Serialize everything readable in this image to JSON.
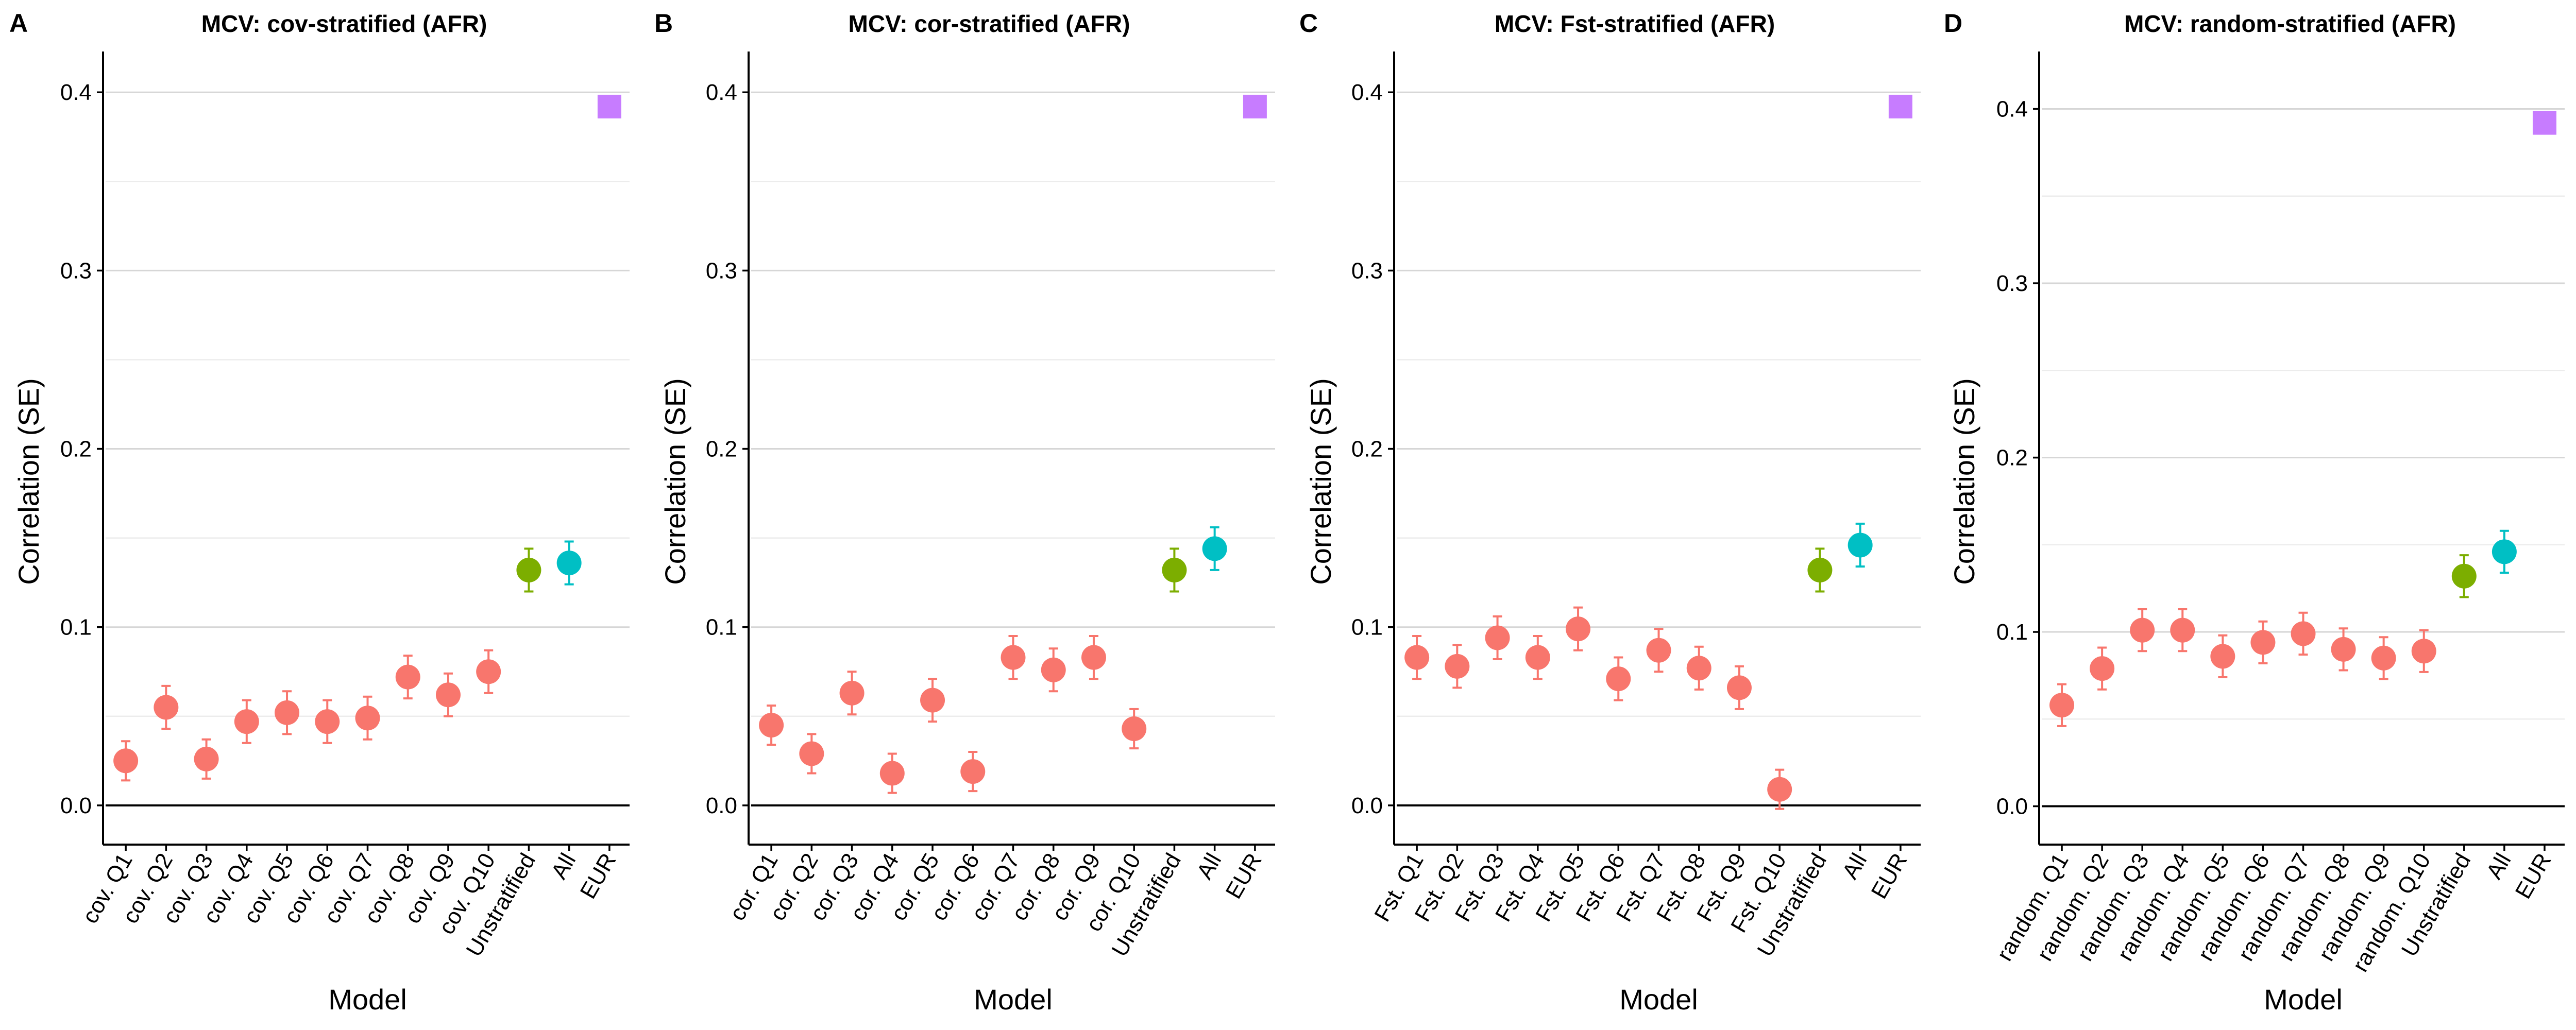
{
  "colors": {
    "stratified": "#F8766D",
    "unstratified": "#7CAE00",
    "all": "#00BFC4",
    "eur": "#C77CFF"
  },
  "chart_data": [
    {
      "type": "scatter",
      "panel": "A",
      "title": "MCV: cov-stratified (AFR)",
      "xlabel": "Model",
      "ylabel": "Correlation (SE)",
      "ylim": [
        -0.022,
        0.42
      ],
      "yticks": [
        0.0,
        0.1,
        0.2,
        0.3,
        0.4
      ],
      "yticklabels": [
        "0.0",
        "0.1",
        "0.2",
        "0.3",
        "0.4"
      ],
      "categories": [
        "cov. Q1",
        "cov. Q2",
        "cov. Q3",
        "cov. Q4",
        "cov. Q5",
        "cov. Q6",
        "cov. Q7",
        "cov. Q8",
        "cov. Q9",
        "cov. Q10",
        "Unstratified",
        "All",
        "EUR"
      ],
      "values": [
        0.025,
        0.055,
        0.026,
        0.047,
        0.052,
        0.047,
        0.049,
        0.072,
        0.062,
        0.075,
        0.132,
        0.136,
        0.392
      ],
      "se": [
        0.011,
        0.012,
        0.011,
        0.012,
        0.012,
        0.012,
        0.012,
        0.012,
        0.012,
        0.012,
        0.012,
        0.012,
        0
      ],
      "groups": [
        "stratified",
        "stratified",
        "stratified",
        "stratified",
        "stratified",
        "stratified",
        "stratified",
        "stratified",
        "stratified",
        "stratified",
        "unstratified",
        "all",
        "eur"
      ]
    },
    {
      "type": "scatter",
      "panel": "B",
      "title": "MCV: cor-stratified (AFR)",
      "xlabel": "Model",
      "ylabel": "Correlation (SE)",
      "ylim": [
        -0.022,
        0.42
      ],
      "yticks": [
        0.0,
        0.1,
        0.2,
        0.3,
        0.4
      ],
      "yticklabels": [
        "0.0",
        "0.1",
        "0.2",
        "0.3",
        "0.4"
      ],
      "categories": [
        "cor. Q1",
        "cor. Q2",
        "cor. Q3",
        "cor. Q4",
        "cor. Q5",
        "cor. Q6",
        "cor. Q7",
        "cor. Q8",
        "cor. Q9",
        "cor. Q10",
        "Unstratified",
        "All",
        "EUR"
      ],
      "values": [
        0.045,
        0.029,
        0.063,
        0.018,
        0.059,
        0.019,
        0.083,
        0.076,
        0.083,
        0.043,
        0.132,
        0.144,
        0.392
      ],
      "se": [
        0.011,
        0.011,
        0.012,
        0.011,
        0.012,
        0.011,
        0.012,
        0.012,
        0.012,
        0.011,
        0.012,
        0.012,
        0
      ],
      "groups": [
        "stratified",
        "stratified",
        "stratified",
        "stratified",
        "stratified",
        "stratified",
        "stratified",
        "stratified",
        "stratified",
        "stratified",
        "unstratified",
        "all",
        "eur"
      ]
    },
    {
      "type": "scatter",
      "panel": "C",
      "title": "MCV: Fst-stratified (AFR)",
      "xlabel": "Model",
      "ylabel": "Correlation (SE)",
      "ylim": [
        -0.022,
        0.42
      ],
      "yticks": [
        0.0,
        0.1,
        0.2,
        0.3,
        0.4
      ],
      "yticklabels": [
        "0.0",
        "0.1",
        "0.2",
        "0.3",
        "0.4"
      ],
      "categories": [
        "Fst. Q1",
        "Fst. Q2",
        "Fst. Q3",
        "Fst. Q4",
        "Fst. Q5",
        "Fst. Q6",
        "Fst. Q7",
        "Fst. Q8",
        "Fst. Q9",
        "Fst. Q10",
        "Unstratified",
        "All",
        "EUR"
      ],
      "values": [
        0.083,
        0.078,
        0.094,
        0.083,
        0.099,
        0.071,
        0.087,
        0.077,
        0.066,
        0.009,
        0.132,
        0.146,
        0.392
      ],
      "se": [
        0.012,
        0.012,
        0.012,
        0.012,
        0.012,
        0.012,
        0.012,
        0.012,
        0.012,
        0.011,
        0.012,
        0.012,
        0
      ],
      "groups": [
        "stratified",
        "stratified",
        "stratified",
        "stratified",
        "stratified",
        "stratified",
        "stratified",
        "stratified",
        "stratified",
        "stratified",
        "unstratified",
        "all",
        "eur"
      ]
    },
    {
      "type": "scatter",
      "panel": "D",
      "title": "MCV: random-stratified (AFR)",
      "xlabel": "Model",
      "ylabel": "Correlation (SE)",
      "ylim": [
        -0.022,
        0.43
      ],
      "yticks": [
        0.0,
        0.1,
        0.2,
        0.3,
        0.4
      ],
      "yticklabels": [
        "0.0",
        "0.1",
        "0.2",
        "0.3",
        "0.4"
      ],
      "categories": [
        "random. Q1",
        "random. Q2",
        "random. Q3",
        "random. Q4",
        "random. Q5",
        "random. Q6",
        "random. Q7",
        "random. Q8",
        "random. Q9",
        "random. Q10",
        "Unstratified",
        "All",
        "EUR"
      ],
      "values": [
        0.058,
        0.079,
        0.101,
        0.101,
        0.086,
        0.094,
        0.099,
        0.09,
        0.085,
        0.089,
        0.132,
        0.146,
        0.392
      ],
      "se": [
        0.012,
        0.012,
        0.012,
        0.012,
        0.012,
        0.012,
        0.012,
        0.012,
        0.012,
        0.012,
        0.012,
        0.012,
        0
      ],
      "groups": [
        "stratified",
        "stratified",
        "stratified",
        "stratified",
        "stratified",
        "stratified",
        "stratified",
        "stratified",
        "stratified",
        "stratified",
        "unstratified",
        "all",
        "eur"
      ]
    }
  ]
}
